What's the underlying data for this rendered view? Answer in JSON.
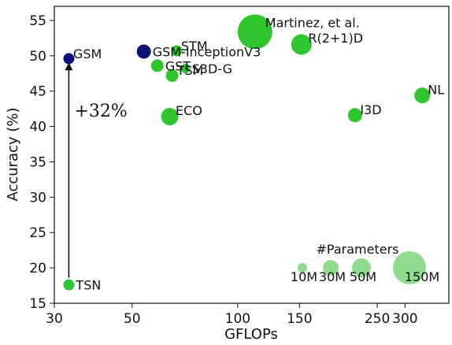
{
  "chart_data": {
    "type": "scatter",
    "title": "",
    "xlabel": "GFLOPs",
    "ylabel": "Accuracy (%)",
    "xscale": "log",
    "xlim": [
      30,
      400
    ],
    "ylim": [
      15,
      57
    ],
    "xticks": [
      30,
      50,
      100,
      150,
      250,
      300
    ],
    "yticks": [
      15,
      20,
      25,
      30,
      35,
      40,
      45,
      50,
      55
    ],
    "grid": false,
    "colors": {
      "green": "#2ec52e",
      "navy": "#0c1178",
      "legend_green": "#8fdc8f"
    },
    "points": [
      {
        "label": "TSN",
        "x": 33,
        "y": 17.6,
        "color": "green",
        "size": 7,
        "label_pos": "right"
      },
      {
        "label": "GSM",
        "x": 33,
        "y": 49.6,
        "color": "navy",
        "size": 7,
        "label_pos": "right-up"
      },
      {
        "label": "GSM-InceptionV3",
        "x": 54,
        "y": 50.6,
        "color": "navy",
        "size": 9,
        "label_pos": "right"
      },
      {
        "label": "GST",
        "x": 59,
        "y": 48.6,
        "color": "green",
        "size": 8,
        "label_pos": "right"
      },
      {
        "label": "STM",
        "x": 67,
        "y": 50.7,
        "color": "green",
        "size": 7,
        "label_pos": "right-up"
      },
      {
        "label": "S3D-G",
        "x": 71,
        "y": 48.2,
        "color": "green",
        "size": 6,
        "label_pos": "right"
      },
      {
        "label": "TSM",
        "x": 65,
        "y": 47.2,
        "color": "green",
        "size": 8,
        "label_pos": "right-up"
      },
      {
        "label": "ECO",
        "x": 64,
        "y": 41.4,
        "color": "green",
        "size": 11,
        "label_pos": "right-up"
      },
      {
        "label": "Martinez, et al.",
        "x": 112,
        "y": 53.4,
        "color": "green",
        "size": 22,
        "label_pos": "right-up"
      },
      {
        "label": "R(2+1)D",
        "x": 152,
        "y": 51.6,
        "color": "green",
        "size": 13,
        "label_pos": "right-up"
      },
      {
        "label": "I3D",
        "x": 216,
        "y": 41.6,
        "color": "green",
        "size": 9,
        "label_pos": "right-up"
      },
      {
        "label": "NL",
        "x": 336,
        "y": 44.4,
        "color": "green",
        "size": 10,
        "label_pos": "right-up"
      }
    ],
    "annotation": {
      "text": "+32%",
      "from": {
        "x": 33,
        "y": 18.6
      },
      "to": {
        "x": 33,
        "y": 48.5
      }
    },
    "legend": {
      "title": "#Parameters",
      "position": "bottom-right",
      "items": [
        {
          "label": "10M",
          "size": 6
        },
        {
          "label": "30M",
          "size": 10
        },
        {
          "label": "50M",
          "size": 12
        },
        {
          "label": "150M",
          "size": 21
        }
      ]
    }
  }
}
